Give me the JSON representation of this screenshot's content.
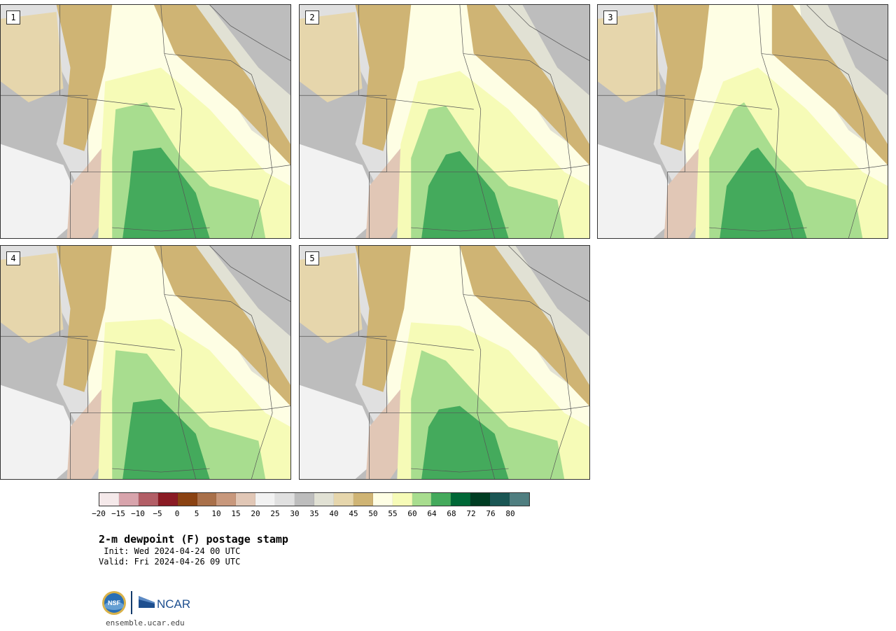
{
  "panels": [
    {
      "label": "1"
    },
    {
      "label": "2"
    },
    {
      "label": "3"
    },
    {
      "label": "4"
    },
    {
      "label": "5"
    }
  ],
  "colorbar": {
    "colors": [
      "#f5e9ea",
      "#d8a4ac",
      "#b25e66",
      "#8a1b24",
      "#8a4212",
      "#a9704a",
      "#c8987c",
      "#e1c7b6",
      "#f2f2f2",
      "#e0e0e0",
      "#bdbdbd",
      "#e1e1d4",
      "#e6d6ac",
      "#cfb474",
      "#fefee4",
      "#f6fbb7",
      "#a8dd8f",
      "#44aa5c",
      "#006837",
      "#003d23",
      "#1a5654",
      "#4f7e80"
    ],
    "ticks": [
      "−20",
      "−15",
      "−10",
      "−5",
      "0",
      "5",
      "10",
      "15",
      "20",
      "25",
      "30",
      "35",
      "40",
      "45",
      "50",
      "55",
      "60",
      "64",
      "68",
      "72",
      "76",
      "80"
    ]
  },
  "title": "2-m dewpoint (F) postage stamp",
  "init": " Init: Wed 2024-04-24 00 UTC",
  "valid": "Valid: Fri 2024-04-26 09 UTC",
  "logos": {
    "nsf": "NSF",
    "ncar": "NCAR"
  },
  "url": "ensemble.ucar.edu"
}
